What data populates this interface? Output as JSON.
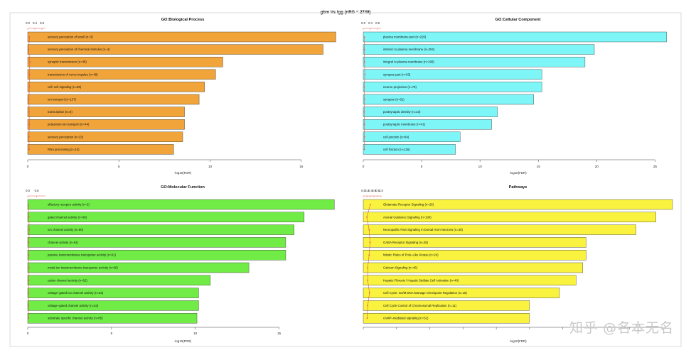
{
  "figure_title": "gbm Vs Igg (nRG = 2749)",
  "watermark": "知乎 @名本无名",
  "colors": {
    "bp": "#F0A43A",
    "cc": "#7EF5F7",
    "mf": "#71EC46",
    "pw": "#F9F33F",
    "line": "#E05A4A",
    "bar_stroke": "#333333"
  },
  "chart_data": [
    {
      "type": "bar",
      "orientation": "horizontal",
      "title": "GO:Biological Process",
      "xlabel": "-log10(FDR)",
      "xlim": [
        0,
        17
      ],
      "xticks": [
        0,
        5,
        10,
        15
      ],
      "top_axis_ticks": [
        "0.0",
        "0.4",
        "0.8"
      ],
      "top_axis_range": [
        0,
        1
      ],
      "categories": [
        "sensory perception of smell (n=3)",
        "sensory perception of chemical stimulus (n=4)",
        "synaptic transmission (n=45)",
        "transmission of nerve impulse (n=49)",
        "cell–cell signaling (n=89)",
        "ion transport (n=137)",
        "transcription (n=8)",
        "potassium ion transport (n=44)",
        "sensory perception (n=23)",
        "RNA processing (n=10)"
      ],
      "values": [
        16.9,
        16.2,
        10.7,
        10.3,
        9.7,
        9.4,
        8.6,
        8.6,
        8.5,
        8.0
      ],
      "line_values": [
        0.1,
        0.05,
        0.12,
        0.1,
        0.09,
        0.07,
        0.08,
        0.09,
        0.07,
        0.08
      ]
    },
    {
      "type": "bar",
      "orientation": "horizontal",
      "title": "GO:Cellular Component",
      "xlabel": "-log10(FDR)",
      "xlim": [
        0,
        26.5
      ],
      "xticks": [
        0,
        5,
        10,
        15,
        20,
        25
      ],
      "top_axis_ticks": [
        "0.0",
        "0.4",
        "0.8"
      ],
      "top_axis_range": [
        0,
        1
      ],
      "categories": [
        "plasma membrane part (n=220)",
        "intrinsic to plasma membrane (n=204)",
        "integral to plasma membrane (n=199)",
        "synapse part (n=63)",
        "neuron projection (n=75)",
        "synapse (n=81)",
        "postsynaptic density (n=23)",
        "postsynaptic membrane (n=41)",
        "cell junction (n=84)",
        "cell fraction (n=116)"
      ],
      "values": [
        26.0,
        19.8,
        19.0,
        15.3,
        15.3,
        14.6,
        11.5,
        11.0,
        8.3,
        7.9
      ],
      "line_values": [
        0.07,
        0.06,
        0.07,
        0.09,
        0.06,
        0.07,
        0.05,
        0.06,
        0.07,
        0.06
      ]
    },
    {
      "type": "bar",
      "orientation": "horizontal",
      "title": "GO:Molecular Function",
      "xlabel": "-log10(FDR)",
      "xlim": [
        0,
        18.5
      ],
      "xticks": [
        0,
        5,
        10,
        15
      ],
      "top_axis_ticks": [
        "0.0",
        "0.6"
      ],
      "top_axis_range": [
        0,
        1.2
      ],
      "categories": [
        "olfactory receptor activity (n=2)",
        "gated channel activity (n=66)",
        "ion channel activity (n=90)",
        "channel activity (n=91)",
        "passive transmembrane transporter activity (n=91)",
        "metal ion transmembrane transporter activity (n=60)",
        "cation channel activity (n=62)",
        "voltage–gated ion channel activity (n=53)",
        "voltage–gated channel activity (n=53)",
        "substrate specific channel activity (n=85)"
      ],
      "values": [
        18.3,
        16.5,
        15.9,
        15.4,
        15.4,
        13.2,
        10.9,
        10.2,
        10.2,
        10.1
      ],
      "line_values": [
        0.05,
        0.08,
        0.1,
        0.08,
        0.07,
        0.09,
        0.08,
        0.07,
        0.06,
        0.05
      ]
    },
    {
      "type": "bar",
      "orientation": "horizontal",
      "title": "Pathways",
      "xlabel": "-log10(FDR)",
      "xlim": [
        0,
        9.3
      ],
      "xticks": [
        0,
        1,
        2,
        3,
        4,
        5,
        6,
        7,
        8,
        9
      ],
      "tick_labels_visible": false,
      "top_axis_ticks": [
        "0.0",
        "0.2",
        "0.4",
        "0.6",
        "0.8",
        "1.0"
      ],
      "top_axis_range": [
        0,
        1
      ],
      "categories": [
        "Glutamate Receptor Signaling (n=26)",
        "Axonal Guidance Signaling (n=100)",
        "Neuropathic Pain Signaling In Dorsal Horn Neurons (n=30)",
        "GABA Receptor Signaling (n=25)",
        "Mitotic Roles of Polo–Like Kinase (n=24)",
        "Calcium Signaling (n=46)",
        "Hepatic Fibrosis / Hepatic Stellate Cell Activation (n=40)",
        "Cell Cycle: G2/M DNA Damage Checkpoint Regulation (n=18)",
        "Cell Cycle Control of Chromosomal Replication (n=11)",
        "cAMP–mediated signaling (n=51)"
      ],
      "values": [
        9.3,
        8.8,
        8.2,
        6.7,
        6.7,
        6.6,
        6.4,
        5.9,
        5.0,
        5.0
      ],
      "line_values": [
        0.4,
        0.2,
        0.33,
        0.38,
        0.33,
        0.25,
        0.25,
        0.35,
        0.25,
        0.22
      ]
    }
  ]
}
